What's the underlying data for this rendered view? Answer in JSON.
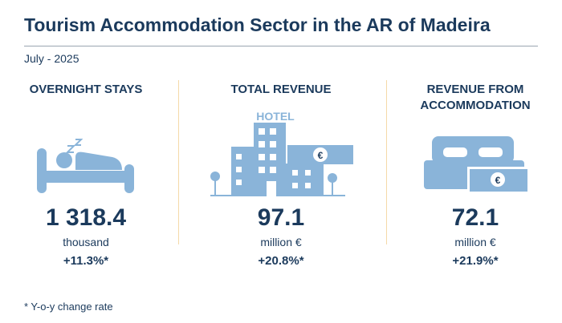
{
  "header": {
    "title": "Tourism Accommodation Sector in the AR of Madeira",
    "subtitle": "July - 2025"
  },
  "panels": [
    {
      "heading": "OVERNIGHT STAYS",
      "value": "1 318.4",
      "unit": "thousand",
      "change": "+11.3%*"
    },
    {
      "heading": "TOTAL REVENUE",
      "value": "97.1",
      "unit": "million €",
      "change": "+20.8%*",
      "icon_label": "HOTEL",
      "icon_symbol": "€"
    },
    {
      "heading": "REVENUE FROM ACCOMMODATION",
      "value": "72.1",
      "unit": "million €",
      "change": "+21.9%*",
      "icon_symbol": "€"
    }
  ],
  "footnote": "* Y-o-y change rate"
}
